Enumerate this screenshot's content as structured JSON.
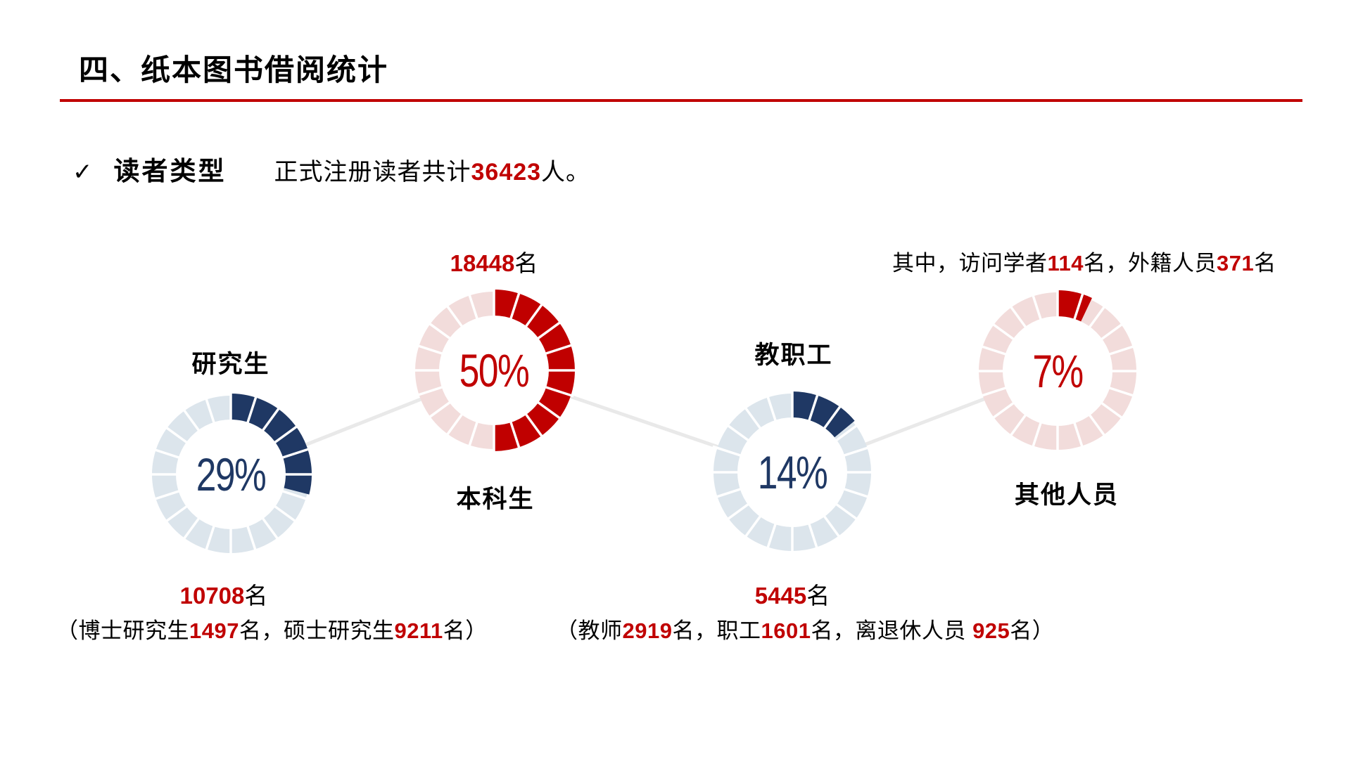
{
  "page": {
    "title": "四、纸本图书借阅统计",
    "bullet_check": "✓",
    "bullet_label": "读者类型",
    "bullet_text": [
      {
        "t": "正式注册读者共计"
      },
      {
        "t": "36423",
        "red": true
      },
      {
        "t": "人。"
      }
    ],
    "note": [
      {
        "t": "其中，访问学者"
      },
      {
        "t": "114",
        "red": true
      },
      {
        "t": "名，外籍人员"
      },
      {
        "t": "371",
        "red": true
      },
      {
        "t": "名"
      }
    ]
  },
  "colors": {
    "accent_red": "#C00000",
    "navy": "#1F3864",
    "track_blue": "#DCE5EC",
    "track_pink": "#F2DCDB",
    "connector_gray": "#E9E9E9",
    "title_rule": "#C00000"
  },
  "chart_data": {
    "type": "pie",
    "variant": "segmented-donut-set",
    "total_readers": 36423,
    "categories": [
      "研究生",
      "本科生",
      "教职工",
      "其他人员"
    ],
    "values_percent": [
      29,
      50,
      14,
      7
    ],
    "donuts": [
      {
        "label": "研究生",
        "percent": 29,
        "percent_label": "29%",
        "count_label": "10708",
        "count_suffix": "名",
        "fill": "#1F3864",
        "track": "#DCE5EC",
        "detail": [
          {
            "t": "（博士研究生"
          },
          {
            "t": "1497",
            "red": true
          },
          {
            "t": "名，硕士研究生"
          },
          {
            "t": "9211",
            "red": true
          },
          {
            "t": "名）"
          }
        ]
      },
      {
        "label": "本科生",
        "percent": 50,
        "percent_label": "50%",
        "count_label": "18448",
        "count_suffix": "名",
        "fill": "#C00000",
        "track": "#F2DCDB"
      },
      {
        "label": "教职工",
        "percent": 14,
        "percent_label": "14%",
        "count_label": "5445",
        "count_suffix": "名",
        "fill": "#1F3864",
        "track": "#DCE5EC",
        "detail": [
          {
            "t": "（教师"
          },
          {
            "t": "2919",
            "red": true
          },
          {
            "t": "名，职工"
          },
          {
            "t": "1601",
            "red": true
          },
          {
            "t": "名，离退休人员 "
          },
          {
            "t": "925",
            "red": true
          },
          {
            "t": "名）"
          }
        ]
      },
      {
        "label": "其他人员",
        "percent": 7,
        "percent_label": "7%",
        "fill": "#C00000",
        "track": "#F2DCDB"
      }
    ]
  }
}
